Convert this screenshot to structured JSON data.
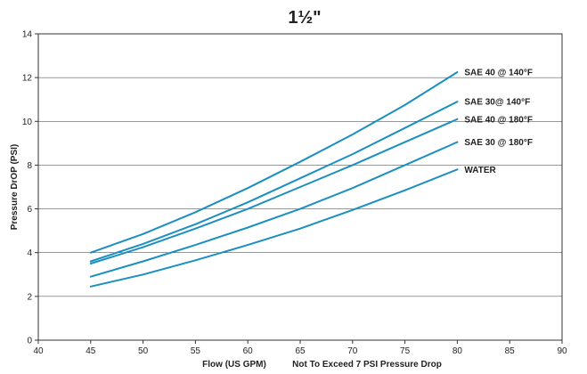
{
  "chart_data": {
    "type": "line",
    "title": "1½\"",
    "xlabel": "Flow (US GPM)",
    "xlabel_note": "Not To Exceed 7 PSI Pressure Drop",
    "ylabel": "Pressure DrOP (PSI)",
    "xlim": [
      40,
      90
    ],
    "ylim": [
      0,
      14
    ],
    "x_ticks": [
      40,
      45,
      50,
      55,
      60,
      65,
      70,
      75,
      80,
      85,
      90
    ],
    "y_ticks": [
      0,
      2,
      4,
      6,
      8,
      10,
      12,
      14
    ],
    "grid": "horizontal",
    "legend": "inline-right",
    "line_color": "#1a8fc0",
    "x": [
      45,
      50,
      55,
      60,
      65,
      70,
      75,
      80
    ],
    "series": [
      {
        "name": "SAE 40 @ 140°F",
        "values": [
          4.0,
          4.85,
          5.85,
          6.95,
          8.15,
          9.4,
          10.75,
          12.25
        ]
      },
      {
        "name": "SAE 30@ 140°F",
        "values": [
          3.6,
          4.4,
          5.3,
          6.3,
          7.4,
          8.5,
          9.7,
          10.9
        ]
      },
      {
        "name": "SAE 40 @ 180°F",
        "values": [
          3.5,
          4.25,
          5.1,
          6.0,
          7.0,
          8.0,
          9.05,
          10.1
        ]
      },
      {
        "name": "SAE 30 @ 180°F",
        "values": [
          2.9,
          3.6,
          4.35,
          5.15,
          6.0,
          6.95,
          8.0,
          9.05
        ]
      },
      {
        "name": "WATER",
        "values": [
          2.45,
          3.0,
          3.65,
          4.35,
          5.1,
          5.95,
          6.85,
          7.8
        ]
      }
    ]
  }
}
